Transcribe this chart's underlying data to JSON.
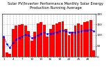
{
  "title": "Solar PV/Inverter Performance Monthly Solar Energy Production Running Average",
  "bar_values": [
    95,
    18,
    12,
    130,
    145,
    148,
    152,
    145,
    120,
    75,
    115,
    155,
    160,
    148,
    95,
    130,
    148,
    155,
    160,
    165,
    130,
    100,
    115,
    145,
    155,
    148,
    160,
    165,
    170,
    30
  ],
  "avg_values": [
    95,
    57,
    42,
    64,
    80,
    88,
    95,
    103,
    99,
    88,
    91,
    100,
    108,
    112,
    106,
    108,
    111,
    114,
    118,
    121,
    118,
    113,
    112,
    114,
    117,
    119,
    121,
    123,
    125,
    118
  ],
  "bar_color": "#ff0000",
  "avg_color": "#0000ff",
  "bg_color": "#ffffff",
  "plot_bg": "#ffffff",
  "ylim": [
    0,
    200
  ],
  "yticks": [
    0,
    50,
    100,
    150,
    200
  ],
  "title_fontsize": 3.8,
  "tick_fontsize": 3.0
}
